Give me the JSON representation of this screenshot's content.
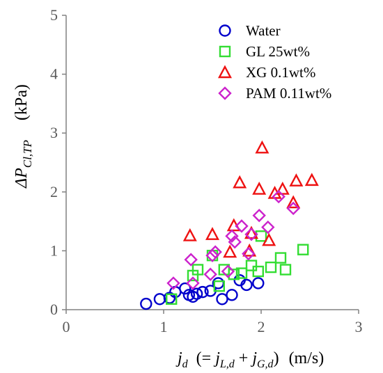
{
  "chart_data": {
    "type": "scatter",
    "xlabel": {
      "main": "j",
      "sub": "d",
      "eq_left": "(= ",
      "term1": "j",
      "term1_sub": "L,d",
      "plus": " + ",
      "term2": "j",
      "term2_sub": "G,d",
      "eq_right": ")",
      "unit": "(m/s)"
    },
    "ylabel": {
      "prefix": "ΔP",
      "sub": "Cl,TP",
      "unit": "(kPa)"
    },
    "xlim": [
      0,
      3
    ],
    "ylim": [
      0,
      5
    ],
    "xticks": [
      "0",
      "1",
      "2",
      "3"
    ],
    "yticks": [
      "0",
      "1",
      "2",
      "3",
      "4",
      "5"
    ],
    "grid": false,
    "legend_position": "top-right",
    "series": [
      {
        "name": "Water",
        "marker": "circle",
        "color": "#0000cc",
        "points": [
          [
            0.82,
            0.1
          ],
          [
            0.96,
            0.18
          ],
          [
            1.06,
            0.2
          ],
          [
            1.12,
            0.3
          ],
          [
            1.22,
            0.36
          ],
          [
            1.26,
            0.25
          ],
          [
            1.3,
            0.22
          ],
          [
            1.34,
            0.27
          ],
          [
            1.4,
            0.3
          ],
          [
            1.48,
            0.32
          ],
          [
            1.56,
            0.45
          ],
          [
            1.6,
            0.18
          ],
          [
            1.7,
            0.25
          ],
          [
            1.78,
            0.5
          ],
          [
            1.85,
            0.42
          ],
          [
            1.97,
            0.45
          ]
        ]
      },
      {
        "name": "GL 25wt%",
        "marker": "square",
        "color": "#33dd33",
        "points": [
          [
            1.08,
            0.18
          ],
          [
            1.3,
            0.58
          ],
          [
            1.35,
            0.68
          ],
          [
            1.5,
            0.92
          ],
          [
            1.57,
            0.4
          ],
          [
            1.62,
            0.68
          ],
          [
            1.72,
            0.6
          ],
          [
            1.8,
            0.62
          ],
          [
            1.9,
            0.75
          ],
          [
            1.97,
            0.65
          ],
          [
            2.0,
            1.25
          ],
          [
            2.1,
            0.72
          ],
          [
            2.2,
            0.88
          ],
          [
            2.25,
            0.68
          ],
          [
            2.43,
            1.02
          ]
        ]
      },
      {
        "name": "XG 0.1wt%",
        "marker": "triangle",
        "color": "#ee1111",
        "points": [
          [
            1.27,
            1.26
          ],
          [
            1.5,
            1.28
          ],
          [
            1.68,
            0.98
          ],
          [
            1.72,
            1.43
          ],
          [
            1.78,
            2.16
          ],
          [
            1.88,
            1.0
          ],
          [
            1.9,
            1.3
          ],
          [
            1.98,
            2.05
          ],
          [
            2.01,
            2.75
          ],
          [
            2.08,
            1.18
          ],
          [
            2.14,
            1.98
          ],
          [
            2.22,
            2.05
          ],
          [
            2.33,
            1.82
          ],
          [
            2.36,
            2.19
          ],
          [
            2.52,
            2.2
          ]
        ]
      },
      {
        "name": "PAM 0.11wt%",
        "marker": "diamond",
        "color": "#cc22cc",
        "points": [
          [
            1.1,
            0.45
          ],
          [
            1.28,
            0.85
          ],
          [
            1.3,
            0.45
          ],
          [
            1.48,
            0.6
          ],
          [
            1.5,
            0.92
          ],
          [
            1.53,
            0.98
          ],
          [
            1.66,
            0.65
          ],
          [
            1.7,
            1.25
          ],
          [
            1.73,
            1.15
          ],
          [
            1.8,
            1.42
          ],
          [
            1.87,
            0.95
          ],
          [
            1.9,
            1.28
          ],
          [
            1.98,
            1.6
          ],
          [
            2.07,
            1.4
          ],
          [
            2.18,
            1.92
          ],
          [
            2.33,
            1.72
          ]
        ]
      }
    ]
  }
}
